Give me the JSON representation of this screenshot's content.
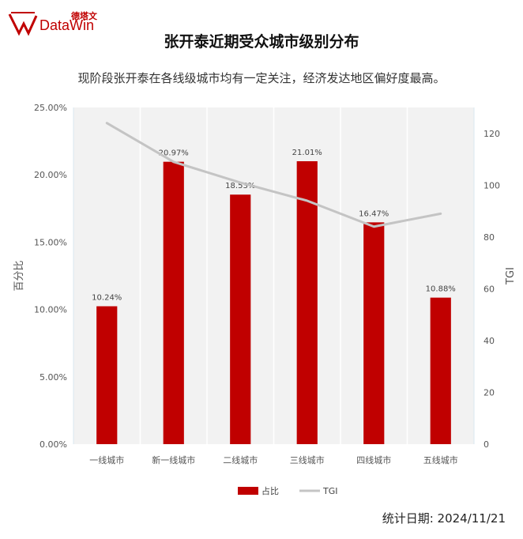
{
  "brand": {
    "name_cn": "德塔文",
    "name_en": "DataWin",
    "accent": "#c00000"
  },
  "header": {
    "title": "张开泰近期受众城市级别分布",
    "subtitle": "现阶段张开泰在各线级城市均有一定关注，经济发达地区偏好度最高。"
  },
  "footer": {
    "date_label": "统计日期:  2024/11/21"
  },
  "chart_data": {
    "type": "bar",
    "categories": [
      "一线城市",
      "新一线城市",
      "二线城市",
      "三线城市",
      "四线城市",
      "五线城市"
    ],
    "series": [
      {
        "name": "占比",
        "type": "bar",
        "axis": "left",
        "values": [
          10.24,
          20.97,
          18.53,
          21.01,
          16.47,
          10.88
        ],
        "labels": [
          "10.24%",
          "20.97%",
          "18.53%",
          "21.01%",
          "16.47%",
          "10.88%"
        ],
        "color": "#c00000"
      },
      {
        "name": "TGI",
        "type": "line",
        "axis": "right",
        "values": [
          124,
          109,
          101,
          94,
          84,
          89
        ],
        "color": "#c4c4c4"
      }
    ],
    "ylabel": "百分比",
    "ylabel_right": "TGI",
    "ylim": [
      0,
      25
    ],
    "ylim_right": [
      0,
      130
    ],
    "y_ticks": [
      "0.00%",
      "5.00%",
      "10.00%",
      "15.00%",
      "20.00%",
      "25.00%"
    ],
    "y_tick_values": [
      0,
      5,
      10,
      15,
      20,
      25
    ],
    "y_right_ticks": [
      "0",
      "20",
      "40",
      "60",
      "80",
      "100",
      "120"
    ],
    "y_right_tick_values": [
      0,
      20,
      40,
      60,
      80,
      100,
      120
    ],
    "legend_position": "bottom-center",
    "plot_background": "#f2f2f2"
  }
}
